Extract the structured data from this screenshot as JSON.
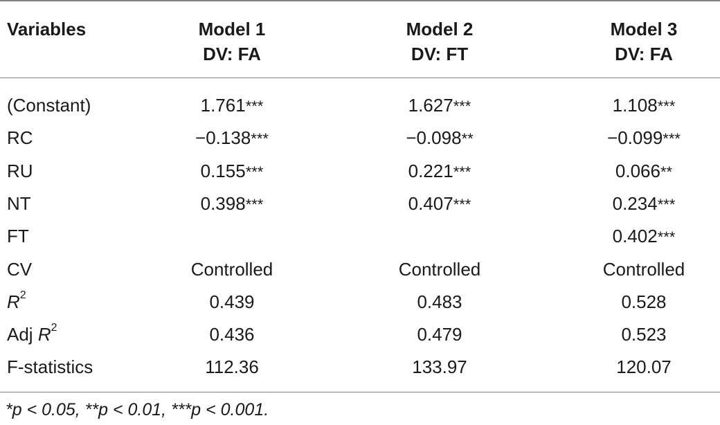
{
  "header": {
    "variables": "Variables",
    "models": [
      {
        "name": "Model 1",
        "dv": "DV: FA"
      },
      {
        "name": "Model 2",
        "dv": "DV: FT"
      },
      {
        "name": "Model 3",
        "dv": "DV: FA"
      }
    ]
  },
  "rows": [
    {
      "label": "(Constant)",
      "values": [
        {
          "v": "1.761",
          "s": "***"
        },
        {
          "v": "1.627",
          "s": "***"
        },
        {
          "v": "1.108",
          "s": "***"
        }
      ]
    },
    {
      "label": "RC",
      "values": [
        {
          "v": "−0.138",
          "s": "***"
        },
        {
          "v": "−0.098",
          "s": "**"
        },
        {
          "v": "−0.099",
          "s": "***"
        }
      ]
    },
    {
      "label": "RU",
      "values": [
        {
          "v": "0.155",
          "s": "***"
        },
        {
          "v": "0.221",
          "s": "***"
        },
        {
          "v": "0.066",
          "s": "**"
        }
      ]
    },
    {
      "label": "NT",
      "values": [
        {
          "v": "0.398",
          "s": "***"
        },
        {
          "v": "0.407",
          "s": "***"
        },
        {
          "v": "0.234",
          "s": "***"
        }
      ]
    },
    {
      "label": "FT",
      "values": [
        {
          "v": "",
          "s": ""
        },
        {
          "v": "",
          "s": ""
        },
        {
          "v": "0.402",
          "s": "***"
        }
      ]
    },
    {
      "label": "CV",
      "values": [
        {
          "v": "Controlled",
          "s": ""
        },
        {
          "v": "Controlled",
          "s": ""
        },
        {
          "v": "Controlled",
          "s": ""
        }
      ]
    },
    {
      "label_prefix": "",
      "label_italic": "R",
      "label_sup": "2",
      "values": [
        {
          "v": "0.439",
          "s": ""
        },
        {
          "v": "0.483",
          "s": ""
        },
        {
          "v": "0.528",
          "s": ""
        }
      ]
    },
    {
      "label_prefix": "Adj ",
      "label_italic": "R",
      "label_sup": "2",
      "values": [
        {
          "v": "0.436",
          "s": ""
        },
        {
          "v": "0.479",
          "s": ""
        },
        {
          "v": "0.523",
          "s": ""
        }
      ]
    },
    {
      "label": "F-statistics",
      "values": [
        {
          "v": "112.36",
          "s": ""
        },
        {
          "v": "133.97",
          "s": ""
        },
        {
          "v": "120.07",
          "s": ""
        }
      ]
    }
  ],
  "footnote": "*p < 0.05, **p < 0.01, ***p < 0.001."
}
